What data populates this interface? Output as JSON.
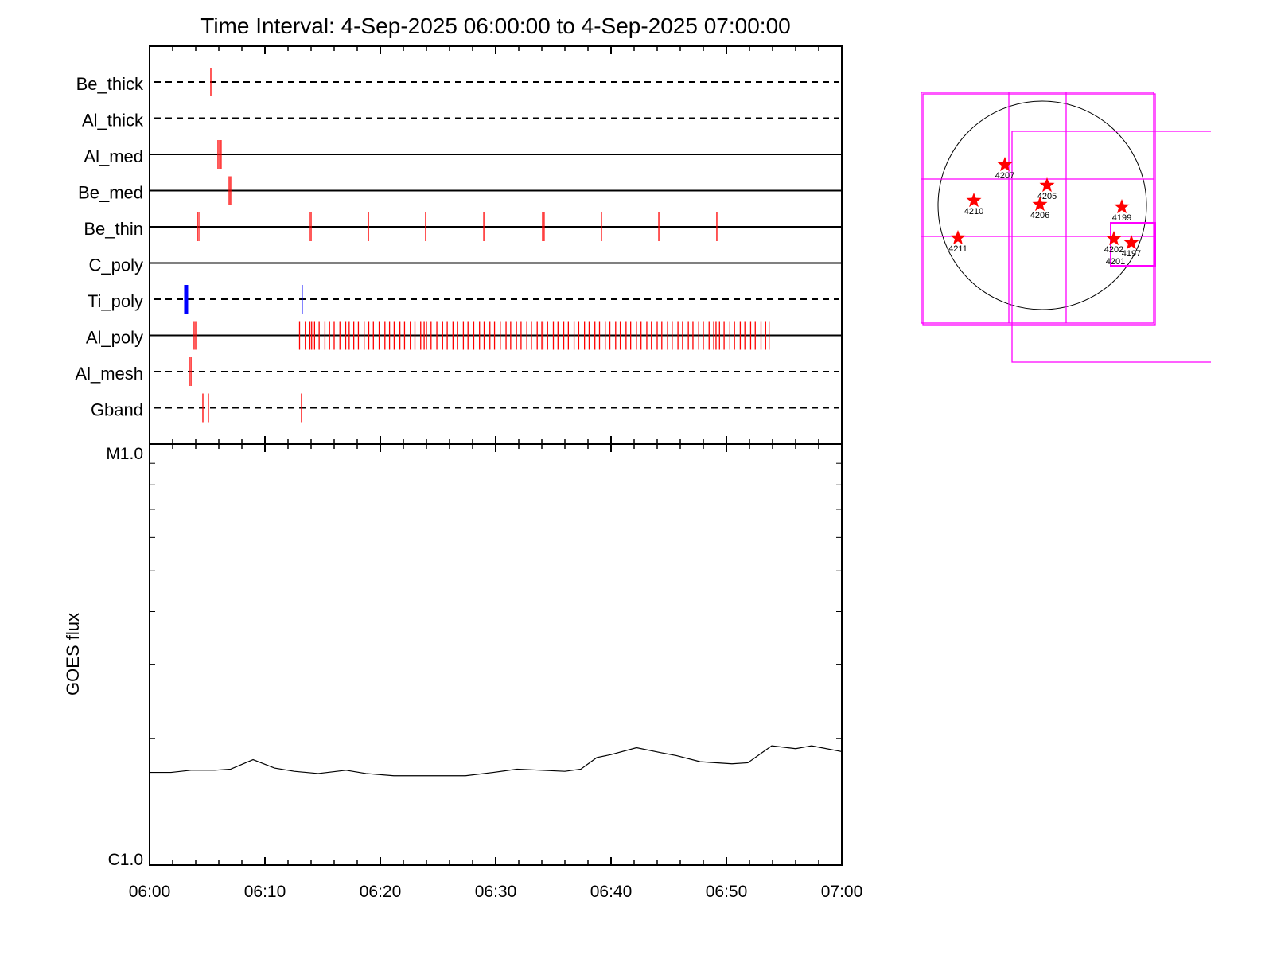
{
  "chart_data": {
    "type": "line",
    "title": "Time Interval:  4-Sep-2025 06:00:00 to  4-Sep-2025 07:00:00",
    "x_ticks": [
      "06:00",
      "06:10",
      "06:20",
      "06:30",
      "06:40",
      "06:50",
      "07:00"
    ],
    "x_range_minutes": [
      0,
      60
    ],
    "event_panel": {
      "rows": [
        {
          "name": "Be_thick",
          "style": "dashed",
          "events": [
            5.31
          ]
        },
        {
          "name": "Al_thick",
          "style": "dashed",
          "events": []
        },
        {
          "name": "Al_med",
          "style": "solid",
          "events": [
            5.93,
            6.07,
            6.2
          ]
        },
        {
          "name": "Be_med",
          "style": "solid",
          "events": [
            6.9,
            7.03
          ]
        },
        {
          "name": "Be_thin",
          "style": "solid",
          "events": [
            4.2,
            4.35,
            13.86,
            14.0,
            18.97,
            23.93,
            28.97,
            34.07,
            34.2,
            39.17,
            44.14,
            49.17
          ]
        },
        {
          "name": "C_poly",
          "style": "solid",
          "events": []
        },
        {
          "name": "Ti_poly",
          "style": "dashed",
          "color": "#0000ff",
          "events": [
            3.17,
            13.24
          ],
          "event_widths": [
            5,
            1
          ]
        },
        {
          "name": "Al_poly",
          "style": "solid",
          "events": [
            3.86,
            4.0,
            13.0,
            13.5,
            13.9,
            14.05,
            14.3,
            14.7,
            15.2,
            15.6,
            16.0,
            16.5,
            17.0,
            17.3,
            17.7,
            18.1,
            18.6,
            19.0,
            19.4,
            19.9,
            20.4,
            20.8,
            21.2,
            21.7,
            22.1,
            22.6,
            23.0,
            23.5,
            23.8,
            24.0,
            24.4,
            24.9,
            25.4,
            25.8,
            26.3,
            26.7,
            27.2,
            27.6,
            28.1,
            28.6,
            29.0,
            29.5,
            29.9,
            30.4,
            30.9,
            31.3,
            31.8,
            32.2,
            32.7,
            33.1,
            33.6,
            34.0,
            34.1,
            34.5,
            35.0,
            35.4,
            35.9,
            36.3,
            36.8,
            37.2,
            37.7,
            38.1,
            38.6,
            39.0,
            39.5,
            39.9,
            40.4,
            40.8,
            41.3,
            41.7,
            42.2,
            42.6,
            43.1,
            43.5,
            44.0,
            44.4,
            44.9,
            45.3,
            45.8,
            46.2,
            46.7,
            47.1,
            47.6,
            48.0,
            48.5,
            48.9,
            49.1,
            49.4,
            49.8,
            50.3,
            50.7,
            51.2,
            51.6,
            52.1,
            52.5,
            53.0,
            53.4,
            53.7
          ]
        },
        {
          "name": "Al_mesh",
          "style": "dashed",
          "events": [
            3.45,
            3.59
          ]
        },
        {
          "name": "Gband",
          "style": "dashed",
          "events": [
            4.62,
            5.1,
            13.17
          ]
        }
      ],
      "event_color": "#ff0000"
    },
    "goes": {
      "ylabel": "GOES flux",
      "y_tick_labels": [
        "M1.0",
        "C1.0"
      ],
      "ylim": [
        1e-06,
        1e-05
      ],
      "scale": "log",
      "x_minutes": [
        0,
        1.86,
        3.59,
        5.66,
        7.03,
        8.97,
        10.83,
        12.55,
        14.62,
        17.03,
        18.76,
        21.17,
        27.38,
        29.79,
        31.86,
        33.93,
        36.0,
        37.38,
        38.76,
        40.0,
        42.21,
        44.28,
        45.66,
        47.72,
        50.48,
        51.86,
        53.93,
        56.0,
        57.38,
        60
      ],
      "flux_1e-6": [
        1.66,
        1.66,
        1.68,
        1.68,
        1.69,
        1.78,
        1.7,
        1.67,
        1.65,
        1.68,
        1.65,
        1.63,
        1.63,
        1.66,
        1.69,
        1.68,
        1.67,
        1.69,
        1.8,
        1.83,
        1.9,
        1.85,
        1.82,
        1.76,
        1.74,
        1.75,
        1.92,
        1.89,
        1.92,
        1.86
      ]
    },
    "sun_map": {
      "regions": [
        "4207",
        "4205",
        "4210",
        "4206",
        "4199",
        "4211",
        "4202",
        "4197",
        "4201"
      ]
    }
  }
}
